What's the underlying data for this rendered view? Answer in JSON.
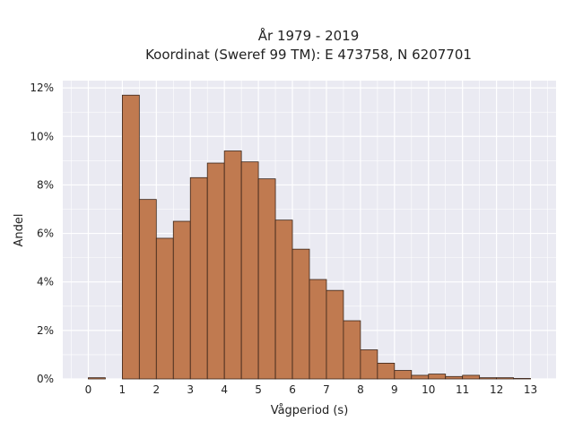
{
  "chart_data": {
    "type": "bar",
    "title": "År 1979 - 2019",
    "subtitle": "Koordinat (Sweref 99 TM): E 473758, N 6207701",
    "xlabel": "Vågperiod (s)",
    "ylabel": "Andel",
    "bin_width": 0.5,
    "bin_starts": [
      0,
      0.5,
      1,
      1.5,
      2,
      2.5,
      3,
      3.5,
      4,
      4.5,
      5,
      5.5,
      6,
      6.5,
      7,
      7.5,
      8,
      8.5,
      9,
      9.5,
      10,
      10.5,
      11,
      11.5,
      12,
      12.5
    ],
    "values": [
      0.05,
      0,
      11.7,
      7.4,
      5.8,
      6.5,
      8.3,
      8.9,
      9.4,
      8.95,
      8.25,
      6.55,
      5.35,
      4.1,
      3.65,
      2.4,
      1.2,
      0.65,
      0.35,
      0.15,
      0.2,
      0.1,
      0.15,
      0.05,
      0.05,
      0.02
    ],
    "value_unit": "%",
    "xlim": [
      -0.75,
      13.75
    ],
    "ylim": [
      0,
      12.3
    ],
    "xticks": [
      0,
      1,
      2,
      3,
      4,
      5,
      6,
      7,
      8,
      9,
      10,
      11,
      12,
      13
    ],
    "yticks": [
      0,
      2,
      4,
      6,
      8,
      10,
      12
    ],
    "ytick_labels": [
      "0%",
      "2%",
      "4%",
      "6%",
      "8%",
      "10%",
      "12%"
    ],
    "grid": true,
    "colors": {
      "bar_fill": "#c07a50",
      "bar_stroke": "#3a2418",
      "plot_bg": "#eaeaf2",
      "grid": "#ffffff"
    }
  }
}
